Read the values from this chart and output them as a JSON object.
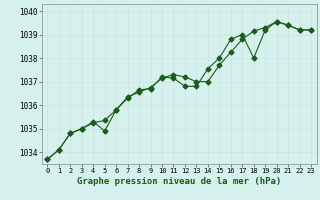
{
  "title": "Graphe pression niveau de la mer (hPa)",
  "background_color": "#d6f0ee",
  "grid_color": "#c8e8e0",
  "line_color": "#1a5c1a",
  "xlim": [
    -0.5,
    23.5
  ],
  "ylim": [
    1033.5,
    1040.3
  ],
  "yticks": [
    1034,
    1035,
    1036,
    1037,
    1038,
    1039,
    1040
  ],
  "xticks": [
    0,
    1,
    2,
    3,
    4,
    5,
    6,
    7,
    8,
    9,
    10,
    11,
    12,
    13,
    14,
    15,
    16,
    17,
    18,
    19,
    20,
    21,
    22,
    23
  ],
  "series1_x": [
    0,
    1,
    2,
    3,
    4,
    5,
    6,
    7,
    8,
    9,
    10,
    11,
    12,
    13,
    14,
    15,
    16,
    17,
    18,
    19,
    20,
    21,
    22,
    23
  ],
  "series1_y": [
    1033.7,
    1034.1,
    1034.8,
    1035.0,
    1035.3,
    1034.9,
    1035.8,
    1036.3,
    1036.65,
    1036.7,
    1037.2,
    1037.15,
    1036.8,
    1036.8,
    1037.55,
    1038.0,
    1038.8,
    1039.0,
    1038.0,
    1039.2,
    1039.55,
    1039.4,
    1039.2,
    1039.2
  ],
  "series2_x": [
    0,
    1,
    2,
    3,
    4,
    5,
    6,
    7,
    8,
    9,
    10,
    11,
    12,
    13,
    14,
    15,
    16,
    17,
    18,
    19,
    20,
    21,
    22,
    23
  ],
  "series2_y": [
    1033.7,
    1034.1,
    1034.8,
    1035.0,
    1035.25,
    1035.35,
    1035.8,
    1036.35,
    1036.55,
    1036.75,
    1037.15,
    1037.3,
    1037.2,
    1037.0,
    1037.0,
    1037.7,
    1038.25,
    1038.8,
    1039.15,
    1039.3,
    1039.55,
    1039.4,
    1039.2,
    1039.2
  ],
  "marker": "D",
  "marker_size": 2.5,
  "linewidth": 0.8,
  "tick_fontsize": 5.5,
  "xlabel_fontsize": 6.5
}
